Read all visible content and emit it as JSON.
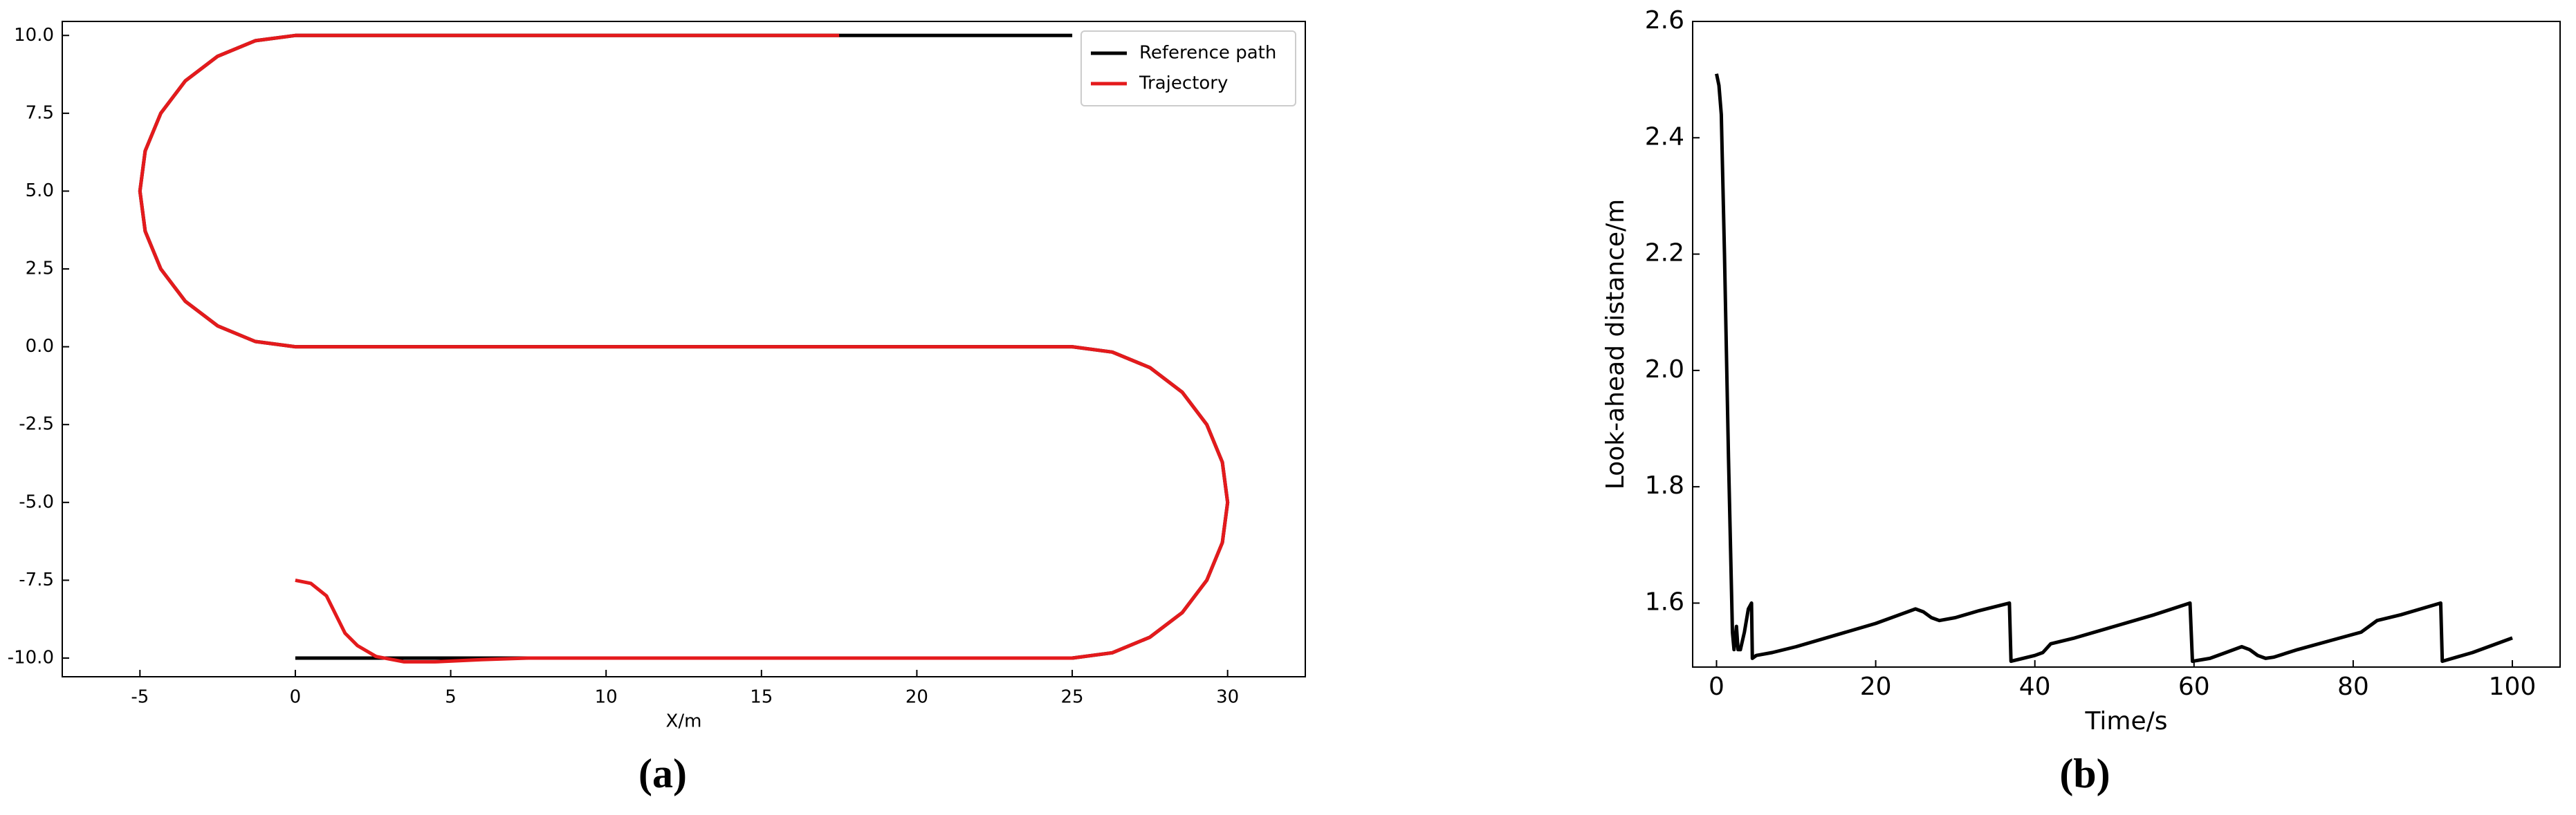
{
  "chart_data": [
    {
      "type": "line",
      "caption": "(a)",
      "xlabel": "X/m",
      "legend": "upper right",
      "xlim": [
        -7.5,
        32.5
      ],
      "ylim": [
        -10.6,
        10.45
      ],
      "xticks": [
        -5,
        0,
        5,
        10,
        15,
        20,
        25,
        30
      ],
      "yticks": [
        {
          "value": -10,
          "label": "-10.0"
        },
        {
          "value": -7.5,
          "label": "-7.5"
        },
        {
          "value": -5,
          "label": "-5.0"
        },
        {
          "value": -2.5,
          "label": "-2.5"
        },
        {
          "value": 0,
          "label": "0.0"
        },
        {
          "value": 2.5,
          "label": "2.5"
        },
        {
          "value": 5,
          "label": "5.0"
        },
        {
          "value": 7.5,
          "label": "7.5"
        },
        {
          "value": 10,
          "label": "10.0"
        }
      ],
      "series": [
        {
          "name": "Reference path",
          "color": "#000000",
          "x": [
            0,
            25,
            26.29,
            27.5,
            28.54,
            29.33,
            29.83,
            30,
            29.83,
            29.33,
            28.54,
            27.5,
            26.29,
            25,
            0,
            -1.29,
            -2.5,
            -3.54,
            -4.33,
            -4.83,
            -5,
            -4.83,
            -4.33,
            -3.54,
            -2.5,
            -1.29,
            0,
            25
          ],
          "values": [
            -10,
            -10,
            -9.83,
            -9.33,
            -8.54,
            -7.5,
            -6.29,
            -5,
            -3.71,
            -2.5,
            -1.46,
            -0.67,
            -0.17,
            0,
            0,
            0.17,
            0.67,
            1.46,
            2.5,
            3.71,
            5,
            6.29,
            7.5,
            8.54,
            9.33,
            9.83,
            10,
            10
          ]
        },
        {
          "name": "Trajectory",
          "color": "#e41a1c",
          "x": [
            0,
            0.5,
            1,
            1.3,
            1.6,
            2,
            2.6,
            3.5,
            4.5,
            6,
            7.5,
            25,
            26.29,
            27.5,
            28.54,
            29.33,
            29.83,
            30,
            29.83,
            29.33,
            28.54,
            27.5,
            26.29,
            25,
            0,
            -1.29,
            -2.5,
            -3.54,
            -4.33,
            -4.83,
            -5,
            -4.83,
            -4.33,
            -3.54,
            -2.5,
            -1.29,
            0,
            17.5
          ],
          "values": [
            -7.5,
            -7.6,
            -8,
            -8.6,
            -9.2,
            -9.6,
            -9.95,
            -10.12,
            -10.12,
            -10.05,
            -10,
            -10,
            -9.83,
            -9.33,
            -8.54,
            -7.5,
            -6.29,
            -5,
            -3.71,
            -2.5,
            -1.46,
            -0.67,
            -0.17,
            0,
            0,
            0.17,
            0.67,
            1.46,
            2.5,
            3.71,
            5,
            6.29,
            7.5,
            8.54,
            9.33,
            9.83,
            10,
            10
          ]
        }
      ]
    },
    {
      "type": "line",
      "caption": "(b)",
      "xlabel": "Time/s",
      "ylabel": "Look-ahead distance/m",
      "xlim": [
        -3,
        106
      ],
      "ylim": [
        1.49,
        2.6
      ],
      "xticks": [
        0,
        20,
        40,
        60,
        80,
        100
      ],
      "yticks": [
        1.6,
        1.8,
        {
          "value": 2,
          "label": "2.0"
        },
        2.2,
        2.4,
        2.6
      ],
      "series": [
        {
          "color": "#000000",
          "x": [
            0,
            0.3,
            0.6,
            1,
            1.5,
            2,
            2.2,
            2.5,
            2.7,
            3,
            3.5,
            4,
            4.4,
            4.5,
            5,
            7,
            10,
            15,
            20,
            24,
            25,
            26,
            27,
            28,
            30,
            33,
            36.8,
            37,
            40,
            41,
            42,
            45,
            50,
            55,
            59.5,
            59.8,
            62,
            64,
            66,
            67,
            68,
            69,
            70,
            73,
            77,
            81,
            82,
            83,
            86,
            91,
            91.2,
            95,
            100
          ],
          "values": [
            2.51,
            2.49,
            2.44,
            2.2,
            1.85,
            1.55,
            1.52,
            1.56,
            1.52,
            1.52,
            1.55,
            1.59,
            1.6,
            1.505,
            1.51,
            1.515,
            1.525,
            1.545,
            1.565,
            1.585,
            1.59,
            1.585,
            1.575,
            1.57,
            1.575,
            1.587,
            1.6,
            1.5,
            1.51,
            1.515,
            1.53,
            1.54,
            1.56,
            1.58,
            1.6,
            1.5,
            1.505,
            1.515,
            1.525,
            1.52,
            1.51,
            1.505,
            1.507,
            1.52,
            1.535,
            1.55,
            1.56,
            1.57,
            1.58,
            1.6,
            1.5,
            1.515,
            1.54
          ]
        }
      ]
    }
  ]
}
